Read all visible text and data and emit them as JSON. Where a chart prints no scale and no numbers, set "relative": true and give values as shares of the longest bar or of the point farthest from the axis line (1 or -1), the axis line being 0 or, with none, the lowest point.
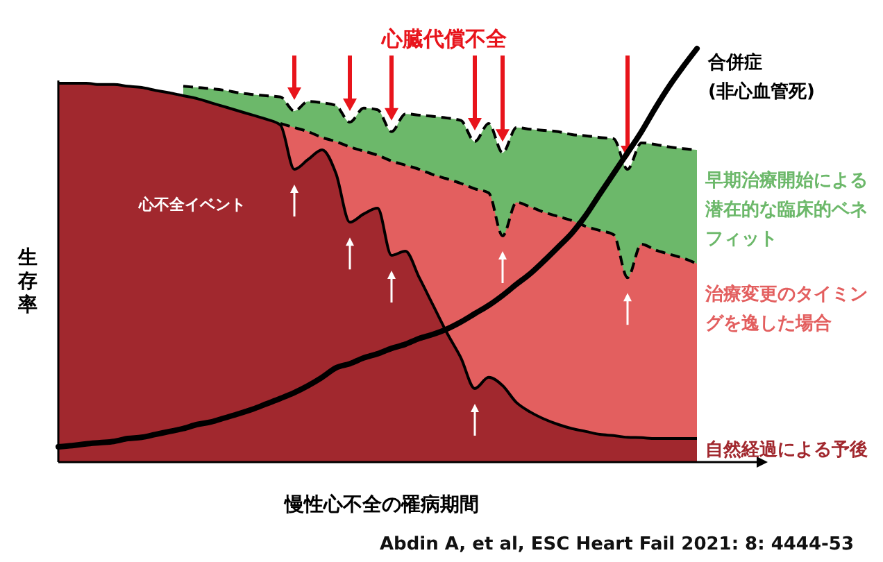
{
  "chart_data": {
    "type": "area",
    "relative": true,
    "xlabel": "慢性心不全の罹病期間",
    "ylabel": "生存率",
    "legend": false,
    "grid": false,
    "annotations": [
      "心臓代償不全",
      "心不全イベント",
      "Abdin A, et al, ESC Heart Fail 2021: 8: 4444-53"
    ],
    "categories": [
      null,
      null,
      null,
      null,
      null,
      null,
      null,
      null,
      null,
      null,
      null,
      null,
      null,
      null,
      null,
      null,
      null,
      null,
      null,
      null,
      null,
      null,
      null,
      null,
      null,
      null,
      null,
      null,
      null,
      null,
      null,
      null,
      null,
      null,
      null,
      null,
      null,
      null,
      null,
      null,
      null,
      null,
      null,
      null,
      null,
      null,
      null
    ],
    "series": [
      {
        "name": "早期治療開始による潜在的な臨床的ベネフィット",
        "color": "#6cb86a",
        "line_style": "dashed",
        "values": [
          null,
          null,
          null,
          null,
          null,
          null,
          null,
          null,
          null,
          0.909,
          0.906,
          0.903,
          0.899,
          0.893,
          0.889,
          0.886,
          0.883,
          0.849,
          0.872,
          0.869,
          0.862,
          0.822,
          0.856,
          0.852,
          0.799,
          0.842,
          0.839,
          0.836,
          0.832,
          0.826,
          0.775,
          0.819,
          0.748,
          0.809,
          0.805,
          0.802,
          0.799,
          0.792,
          0.789,
          0.785,
          0.782,
          0.708,
          0.772,
          0.768,
          0.762,
          0.758,
          0.755
        ]
      },
      {
        "name": "治療変更のタイミングを逸した場合",
        "color": "#e35f5f",
        "line_style": "dashed",
        "values": [
          null,
          null,
          null,
          null,
          null,
          null,
          null,
          null,
          null,
          null,
          null,
          null,
          null,
          null,
          null,
          null,
          0.819,
          0.809,
          0.799,
          0.785,
          0.775,
          0.762,
          0.752,
          0.742,
          0.728,
          0.718,
          0.708,
          0.695,
          0.685,
          0.674,
          0.661,
          0.651,
          0.547,
          0.628,
          0.617,
          0.604,
          0.594,
          0.584,
          0.57,
          0.56,
          0.55,
          0.446,
          0.527,
          0.513,
          0.503,
          0.493,
          0.48
        ]
      },
      {
        "name": "自然経過による予後",
        "color": "#a1282e",
        "line_style": "solid",
        "values": [
          0.916,
          0.916,
          0.916,
          0.913,
          0.913,
          0.909,
          0.906,
          0.899,
          0.893,
          0.886,
          0.879,
          0.869,
          0.859,
          0.849,
          0.839,
          0.829,
          0.815,
          0.708,
          0.732,
          0.755,
          0.698,
          0.58,
          0.6,
          0.614,
          0.5,
          0.51,
          0.446,
          0.379,
          0.312,
          0.252,
          0.178,
          0.205,
          0.185,
          0.144,
          0.121,
          0.104,
          0.091,
          0.081,
          0.074,
          0.067,
          0.064,
          0.06,
          0.059,
          0.057,
          0.057,
          0.057,
          0.057
        ]
      },
      {
        "name": "合併症\n(非心血管死)",
        "type": "line",
        "color": "#000000",
        "line_style": "solid",
        "values": [
          0.037,
          0.04,
          0.044,
          0.047,
          0.05,
          0.057,
          0.06,
          0.067,
          0.074,
          0.081,
          0.091,
          0.097,
          0.107,
          0.117,
          0.128,
          0.141,
          0.154,
          0.168,
          0.185,
          0.205,
          0.228,
          0.238,
          0.252,
          0.262,
          0.275,
          0.285,
          0.299,
          0.309,
          0.322,
          0.339,
          0.359,
          0.379,
          0.403,
          0.43,
          0.456,
          0.487,
          0.52,
          0.554,
          0.597,
          0.648,
          0.698,
          0.748,
          0.799,
          0.856,
          0.909,
          0.956,
          1
        ]
      }
    ]
  }
}
